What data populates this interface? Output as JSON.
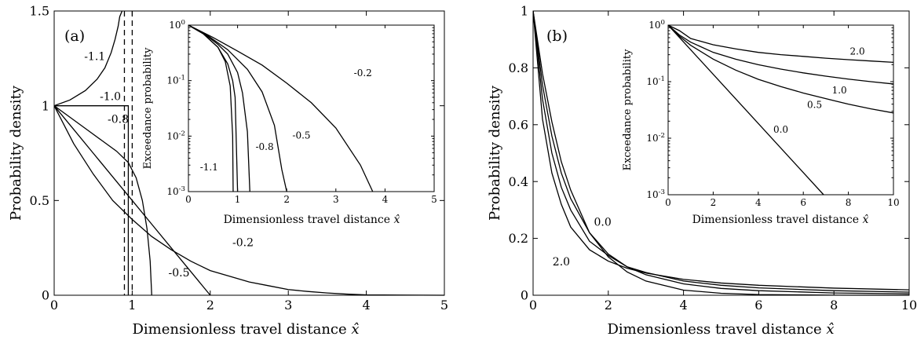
{
  "chart_data": [
    {
      "type": "line",
      "panel_label": "(a)",
      "xlabel": "Dimensionless travel distance x̂",
      "ylabel": "Probability density",
      "xlim": [
        0,
        5
      ],
      "ylim": [
        0,
        1.5
      ],
      "xticks": [
        "0",
        "1",
        "2",
        "3",
        "4",
        "5"
      ],
      "yticks": [
        "0",
        "0.5",
        "1",
        "1.5"
      ],
      "series": [
        {
          "name": "-1.1",
          "x": [
            0,
            0.2,
            0.4,
            0.55,
            0.65,
            0.73,
            0.78,
            0.82,
            0.84,
            0.87
          ],
          "y": [
            1.0,
            1.03,
            1.08,
            1.14,
            1.2,
            1.28,
            1.35,
            1.42,
            1.47,
            1.5
          ]
        },
        {
          "name": "-1.0",
          "x": [
            0,
            0.95,
            0.95
          ],
          "y": [
            1.0,
            1.0,
            0
          ]
        },
        {
          "name": "-0.8",
          "x": [
            0,
            0.2,
            0.4,
            0.6,
            0.8,
            0.95,
            1.05,
            1.13,
            1.19,
            1.23,
            1.25
          ],
          "y": [
            1.0,
            0.94,
            0.88,
            0.82,
            0.76,
            0.7,
            0.62,
            0.5,
            0.35,
            0.18,
            0
          ]
        },
        {
          "name": "-0.5",
          "x": [
            0,
            0.25,
            0.5,
            0.75,
            1.0,
            1.25,
            1.5,
            1.75,
            2.0
          ],
          "y": [
            1.0,
            0.875,
            0.75,
            0.625,
            0.5,
            0.375,
            0.25,
            0.125,
            0
          ]
        },
        {
          "name": "-0.2",
          "x": [
            0,
            0.25,
            0.5,
            0.75,
            1.0,
            1.25,
            1.5,
            1.75,
            2.0,
            2.25,
            2.5,
            2.75,
            3.0,
            3.25,
            3.5,
            3.75,
            4.0,
            5.0
          ],
          "y": [
            1.0,
            0.8,
            0.64,
            0.5,
            0.4,
            0.31,
            0.24,
            0.18,
            0.13,
            0.1,
            0.07,
            0.05,
            0.03,
            0.02,
            0.012,
            0.006,
            0.002,
            0
          ]
        }
      ],
      "dashed_lines": [
        {
          "x": 0.9
        },
        {
          "x": 1.0
        }
      ],
      "annotations": [
        {
          "text": "-1.1",
          "x": 0.52,
          "y": 1.24
        },
        {
          "text": "-1.0",
          "x": 0.72,
          "y": 1.03
        },
        {
          "text": "-0.8",
          "x": 0.82,
          "y": 0.91
        },
        {
          "text": "-0.2",
          "x": 2.42,
          "y": 0.26
        },
        {
          "text": "-0.5",
          "x": 1.6,
          "y": 0.1
        }
      ],
      "inset": {
        "xlabel": "Dimensionless travel distance x̂",
        "ylabel": "Exceedance probability",
        "xlim": [
          0,
          5
        ],
        "yscale": "log",
        "ylim": [
          0.001,
          1
        ],
        "xticks": [
          "0",
          "1",
          "2",
          "3",
          "4",
          "5"
        ],
        "series": [
          {
            "name": "-1.1",
            "x": [
              0,
              0.3,
              0.6,
              0.75,
              0.85,
              0.9,
              0.91
            ],
            "y": [
              1.0,
              0.7,
              0.4,
              0.22,
              0.08,
              0.01,
              0.001
            ]
          },
          {
            "name": "-1.0",
            "x": [
              0,
              0.3,
              0.6,
              0.8,
              0.9,
              0.95,
              1.0
            ],
            "y": [
              1.0,
              0.7,
              0.4,
              0.2,
              0.1,
              0.05,
              0.001
            ]
          },
          {
            "name": "-0.8",
            "x": [
              0,
              0.3,
              0.6,
              0.8,
              1.0,
              1.1,
              1.2,
              1.25
            ],
            "y": [
              1.0,
              0.72,
              0.45,
              0.3,
              0.14,
              0.06,
              0.012,
              0.001
            ]
          },
          {
            "name": "-0.5",
            "x": [
              0,
              0.4,
              0.8,
              1.2,
              1.5,
              1.75,
              1.9,
              2.0
            ],
            "y": [
              1.0,
              0.64,
              0.36,
              0.16,
              0.0625,
              0.0156,
              0.0025,
              0.001
            ]
          },
          {
            "name": "-0.2",
            "x": [
              0,
              0.5,
              1.0,
              1.5,
              2.0,
              2.5,
              3.0,
              3.5,
              3.75
            ],
            "y": [
              1.0,
              0.6,
              0.34,
              0.19,
              0.09,
              0.04,
              0.014,
              0.003,
              0.001
            ]
          }
        ],
        "annotations": [
          {
            "text": "-1.1",
            "x": 0.42,
            "y": 0.0024
          },
          {
            "text": "-0.8",
            "x": 1.55,
            "y": 0.0056
          },
          {
            "text": "-0.5",
            "x": 2.3,
            "y": 0.009
          },
          {
            "text": "-0.2",
            "x": 3.55,
            "y": 0.12
          }
        ]
      }
    },
    {
      "type": "line",
      "panel_label": "(b)",
      "xlabel": "Dimensionless travel distance x̂",
      "ylabel": "Probability density",
      "xlim": [
        0,
        10
      ],
      "ylim": [
        0,
        1
      ],
      "xticks": [
        "0",
        "2",
        "4",
        "6",
        "8",
        "10"
      ],
      "yticks": [
        "0",
        "0.2",
        "0.4",
        "0.6",
        "0.8",
        "1"
      ],
      "series": [
        {
          "name": "0.0",
          "x": [
            0,
            0.25,
            0.5,
            0.75,
            1.0,
            1.5,
            2.0,
            2.5,
            3.0,
            4.0,
            5.0,
            6.0,
            8.0,
            10.0
          ],
          "y": [
            1.0,
            0.78,
            0.61,
            0.47,
            0.37,
            0.22,
            0.135,
            0.082,
            0.05,
            0.018,
            0.007,
            0.0025,
            0.0003,
            0
          ]
        },
        {
          "name": "0.5",
          "x": [
            0,
            0.25,
            0.5,
            0.75,
            1.0,
            1.5,
            2.0,
            2.5,
            3.0,
            4.0,
            5.0,
            6.0,
            8.0,
            10.0
          ],
          "y": [
            1.0,
            0.74,
            0.56,
            0.43,
            0.34,
            0.22,
            0.145,
            0.1,
            0.072,
            0.04,
            0.024,
            0.016,
            0.008,
            0.005
          ]
        },
        {
          "name": "1.0",
          "x": [
            0,
            0.25,
            0.5,
            0.75,
            1.0,
            1.5,
            2.0,
            2.5,
            3.0,
            4.0,
            5.0,
            6.0,
            8.0,
            10.0
          ],
          "y": [
            1.0,
            0.69,
            0.5,
            0.38,
            0.3,
            0.19,
            0.14,
            0.1,
            0.08,
            0.05,
            0.035,
            0.026,
            0.016,
            0.011
          ]
        },
        {
          "name": "2.0",
          "x": [
            0,
            0.25,
            0.5,
            0.75,
            1.0,
            1.5,
            2.0,
            2.5,
            3.0,
            4.0,
            5.0,
            6.0,
            8.0,
            10.0
          ],
          "y": [
            1.0,
            0.62,
            0.43,
            0.32,
            0.24,
            0.16,
            0.12,
            0.095,
            0.078,
            0.056,
            0.043,
            0.035,
            0.025,
            0.019
          ]
        }
      ],
      "annotations": [
        {
          "text": "0.0",
          "x": 1.85,
          "y": 0.245
        },
        {
          "text": "2.0",
          "x": 0.75,
          "y": 0.105
        }
      ],
      "inset": {
        "xlabel": "Dimensionless travel distance x̂",
        "ylabel": "Exceedance probability",
        "xlim": [
          0,
          10
        ],
        "yscale": "log",
        "ylim": [
          0.001,
          1
        ],
        "xticks": [
          "0",
          "2",
          "4",
          "6",
          "8",
          "10"
        ],
        "series": [
          {
            "name": "0.0",
            "x": [
              0,
              6.9
            ],
            "y": [
              1.0,
              0.001
            ]
          },
          {
            "name": "0.5",
            "x": [
              0,
              0.5,
              1,
              2,
              3,
              4,
              5,
              6,
              7,
              8,
              9,
              10
            ],
            "y": [
              1.0,
              0.64,
              0.44,
              0.25,
              0.16,
              0.11,
              0.082,
              0.063,
              0.05,
              0.04,
              0.033,
              0.028
            ]
          },
          {
            "name": "1.0",
            "x": [
              0,
              0.5,
              1,
              2,
              3,
              4,
              5,
              6,
              7,
              8,
              9,
              10
            ],
            "y": [
              1.0,
              0.67,
              0.5,
              0.33,
              0.25,
              0.2,
              0.167,
              0.143,
              0.125,
              0.111,
              0.1,
              0.091
            ]
          },
          {
            "name": "2.0",
            "x": [
              0,
              0.5,
              1,
              2,
              3,
              4,
              5,
              6,
              7,
              8,
              9,
              10
            ],
            "y": [
              1.0,
              0.8,
              0.58,
              0.45,
              0.38,
              0.33,
              0.3,
              0.28,
              0.26,
              0.245,
              0.232,
              0.22
            ]
          }
        ],
        "annotations": [
          {
            "text": "2.0",
            "x": 8.4,
            "y": 0.3
          },
          {
            "text": "1.0",
            "x": 7.6,
            "y": 0.062
          },
          {
            "text": "0.5",
            "x": 6.5,
            "y": 0.034
          },
          {
            "text": "0.0",
            "x": 5.0,
            "y": 0.0125
          }
        ]
      }
    }
  ]
}
